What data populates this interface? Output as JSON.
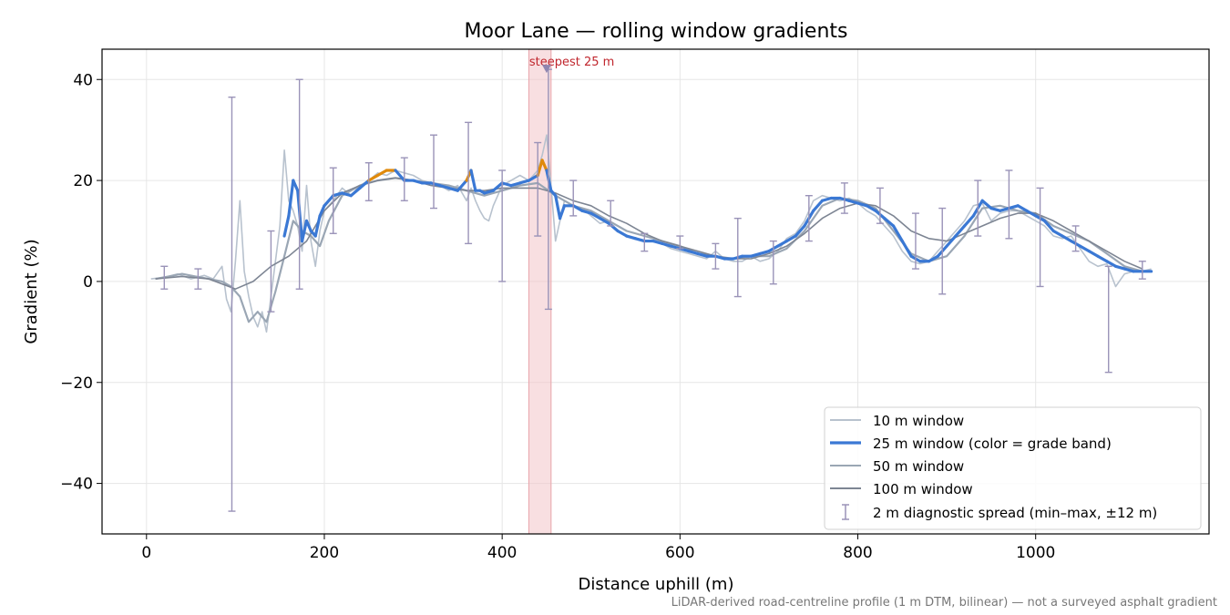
{
  "chart_data": {
    "type": "line",
    "title": "Moor Lane — rolling window gradients",
    "xlabel": "Distance uphill (m)",
    "ylabel": "Gradient (%)",
    "xlim": [
      -50,
      1195
    ],
    "ylim": [
      -50,
      46
    ],
    "x_ticks": [
      0,
      200,
      400,
      600,
      800,
      1000
    ],
    "y_ticks": [
      -40,
      -20,
      0,
      20,
      40
    ],
    "x_tick_labels": [
      "0",
      "200",
      "400",
      "600",
      "800",
      "1000"
    ],
    "y_tick_labels": [
      "−40",
      "−20",
      "0",
      "20",
      "40"
    ],
    "grid": true,
    "legend_position": "lower-right",
    "footnote": "LiDAR-derived road-centreline profile (1 m DTM, bilinear) — not a surveyed asphalt gradient",
    "annotation": {
      "text": "steepest 25 m",
      "x": 450,
      "y": 42,
      "span": [
        430,
        455
      ]
    },
    "colors": {
      "w10": "#b8c2ce",
      "w25_blue": "#3a78d4",
      "w25_orange": "#e08a0b",
      "w50": "#9aa6b4",
      "w100": "#7d8593",
      "errorbar": "#9a93b8",
      "span": "#f2c4c8",
      "marker": "#8e86b0"
    },
    "series": [
      {
        "name": "10 m window",
        "x": [
          5,
          20,
          35,
          50,
          65,
          75,
          85,
          90,
          95,
          100,
          105,
          110,
          115,
          120,
          125,
          130,
          135,
          140,
          145,
          150,
          155,
          160,
          165,
          170,
          175,
          180,
          185,
          190,
          195,
          200,
          210,
          220,
          230,
          240,
          250,
          260,
          270,
          280,
          290,
          300,
          310,
          320,
          330,
          340,
          350,
          360,
          365,
          370,
          375,
          380,
          385,
          390,
          400,
          410,
          420,
          430,
          440,
          445,
          450,
          455,
          460,
          470,
          480,
          490,
          500,
          510,
          520,
          530,
          540,
          550,
          560,
          570,
          580,
          590,
          600,
          610,
          620,
          630,
          640,
          650,
          660,
          670,
          680,
          690,
          700,
          710,
          720,
          730,
          740,
          750,
          760,
          770,
          780,
          790,
          800,
          810,
          820,
          830,
          840,
          850,
          860,
          870,
          880,
          890,
          900,
          910,
          920,
          930,
          940,
          950,
          960,
          970,
          980,
          990,
          1000,
          1010,
          1020,
          1030,
          1040,
          1050,
          1060,
          1070,
          1080,
          1090,
          1100,
          1110,
          1120,
          1130
        ],
        "y": [
          0.5,
          0.8,
          1.5,
          0.5,
          1.2,
          0.5,
          3.0,
          -3.5,
          -6.0,
          4.0,
          16.0,
          2.0,
          -3.0,
          -7.0,
          -9.0,
          -6.0,
          -10.0,
          -3.0,
          4.0,
          11.0,
          26.0,
          16.0,
          14.0,
          11.0,
          6.0,
          19.0,
          8.0,
          3.0,
          10.0,
          14.0,
          16.0,
          18.5,
          17.0,
          19.0,
          20.0,
          21.5,
          21.0,
          22.0,
          21.5,
          21.0,
          20.0,
          19.5,
          19.0,
          18.0,
          19.0,
          16.0,
          18.5,
          16.0,
          14.0,
          12.5,
          12.0,
          15.0,
          19.0,
          20.0,
          21.0,
          20.0,
          22.0,
          25.0,
          29.0,
          19.0,
          8.0,
          16.0,
          15.0,
          14.5,
          13.0,
          11.5,
          12.0,
          10.0,
          9.0,
          8.5,
          8.0,
          8.0,
          7.5,
          6.5,
          6.0,
          5.5,
          5.0,
          4.5,
          6.0,
          4.5,
          4.0,
          4.0,
          5.0,
          4.0,
          4.5,
          6.0,
          8.5,
          9.5,
          12.0,
          16.0,
          17.0,
          16.5,
          16.0,
          16.5,
          15.5,
          14.0,
          13.0,
          11.0,
          9.0,
          6.0,
          4.0,
          3.5,
          4.0,
          6.0,
          8.0,
          10.0,
          12.0,
          15.0,
          15.5,
          12.0,
          13.5,
          14.0,
          14.0,
          13.0,
          12.0,
          11.0,
          9.0,
          8.5,
          9.0,
          6.5,
          4.0,
          3.0,
          3.5,
          -1.0,
          1.5,
          2.0,
          2.0,
          2.5
        ]
      },
      {
        "name": "25 m window (color = grade band)",
        "x": [
          155,
          160,
          165,
          170,
          175,
          180,
          185,
          190,
          195,
          200,
          210,
          220,
          230,
          240,
          250,
          260,
          270,
          280,
          290,
          300,
          310,
          320,
          330,
          340,
          350,
          360,
          365,
          370,
          375,
          380,
          390,
          400,
          410,
          420,
          430,
          440,
          445,
          450,
          455,
          460,
          465,
          470,
          480,
          490,
          500,
          510,
          520,
          530,
          540,
          550,
          560,
          570,
          580,
          590,
          600,
          610,
          620,
          630,
          640,
          650,
          660,
          670,
          680,
          690,
          700,
          710,
          720,
          730,
          740,
          750,
          760,
          770,
          780,
          790,
          800,
          810,
          820,
          830,
          840,
          850,
          860,
          870,
          880,
          890,
          900,
          910,
          920,
          930,
          940,
          950,
          960,
          970,
          980,
          990,
          1000,
          1010,
          1020,
          1030,
          1040,
          1050,
          1060,
          1070,
          1080,
          1090,
          1100,
          1110,
          1120,
          1130
        ],
        "y": [
          9.0,
          13.0,
          20.0,
          18.0,
          8.0,
          12.0,
          10.0,
          9.0,
          13.0,
          15.0,
          17.0,
          17.5,
          17.0,
          18.5,
          20.0,
          21.0,
          22.0,
          22.0,
          20.0,
          20.0,
          19.5,
          19.5,
          19.0,
          18.5,
          18.0,
          20.0,
          22.0,
          18.0,
          18.0,
          17.5,
          18.0,
          19.5,
          19.0,
          19.5,
          20.0,
          21.0,
          24.0,
          22.0,
          18.0,
          17.0,
          12.5,
          15.0,
          15.0,
          14.0,
          13.5,
          12.5,
          11.5,
          10.0,
          9.0,
          8.5,
          8.0,
          8.0,
          7.5,
          7.0,
          6.5,
          6.0,
          5.5,
          5.0,
          5.0,
          4.5,
          4.5,
          5.0,
          5.0,
          5.5,
          6.0,
          7.0,
          8.0,
          9.0,
          11.0,
          14.0,
          16.0,
          16.5,
          16.5,
          16.0,
          15.5,
          15.0,
          14.0,
          12.5,
          11.0,
          8.0,
          5.0,
          4.0,
          4.0,
          5.0,
          7.0,
          9.0,
          11.0,
          13.0,
          16.0,
          14.5,
          14.0,
          14.5,
          15.0,
          14.0,
          13.0,
          12.0,
          10.0,
          9.0,
          8.0,
          7.0,
          6.0,
          5.0,
          4.0,
          3.0,
          2.5,
          2.0,
          2.0,
          2.0
        ],
        "orange_ranges": [
          [
            250,
            285
          ],
          [
            355,
            365
          ],
          [
            435,
            450
          ]
        ]
      },
      {
        "name": "50 m window",
        "x": [
          10,
          25,
          40,
          55,
          70,
          85,
          95,
          105,
          115,
          125,
          135,
          145,
          155,
          165,
          175,
          185,
          195,
          205,
          220,
          240,
          260,
          280,
          300,
          320,
          340,
          360,
          380,
          400,
          420,
          440,
          460,
          480,
          500,
          520,
          540,
          560,
          580,
          600,
          620,
          640,
          660,
          680,
          700,
          720,
          740,
          760,
          780,
          800,
          820,
          840,
          860,
          880,
          900,
          920,
          940,
          960,
          980,
          1000,
          1020,
          1040,
          1060,
          1080,
          1100,
          1120,
          1130
        ],
        "y": [
          0.5,
          1.0,
          1.5,
          1.0,
          0.5,
          0.0,
          -1.0,
          -3.0,
          -8.0,
          -6.0,
          -8.0,
          -2.0,
          5.0,
          12.0,
          10.0,
          9.0,
          7.0,
          12.0,
          17.0,
          19.0,
          20.0,
          20.5,
          20.0,
          19.5,
          19.0,
          18.0,
          17.0,
          18.0,
          19.0,
          19.5,
          17.0,
          15.0,
          14.0,
          12.0,
          10.0,
          9.0,
          8.0,
          7.0,
          5.5,
          5.0,
          4.5,
          5.0,
          5.0,
          6.5,
          10.0,
          15.0,
          16.5,
          16.0,
          14.5,
          10.0,
          5.5,
          4.0,
          5.0,
          9.0,
          14.5,
          15.0,
          14.0,
          13.5,
          11.0,
          9.5,
          8.0,
          5.5,
          3.0,
          2.0,
          2.0
        ]
      },
      {
        "name": "100 m window",
        "x": [
          10,
          40,
          70,
          100,
          120,
          140,
          160,
          180,
          200,
          220,
          240,
          260,
          280,
          300,
          320,
          340,
          360,
          380,
          400,
          420,
          440,
          460,
          480,
          500,
          520,
          540,
          560,
          580,
          600,
          620,
          640,
          660,
          680,
          700,
          720,
          740,
          760,
          780,
          800,
          820,
          840,
          860,
          880,
          900,
          920,
          940,
          960,
          980,
          1000,
          1020,
          1040,
          1060,
          1080,
          1100,
          1120
        ],
        "y": [
          0.5,
          1.0,
          0.5,
          -1.5,
          0.0,
          3.0,
          5.0,
          8.0,
          14.0,
          17.5,
          19.0,
          20.0,
          20.5,
          20.0,
          19.0,
          18.5,
          18.0,
          18.0,
          18.5,
          18.5,
          18.5,
          17.5,
          16.0,
          15.0,
          13.0,
          11.5,
          9.5,
          8.0,
          7.0,
          6.0,
          5.0,
          4.5,
          4.5,
          5.5,
          7.0,
          9.5,
          12.5,
          14.5,
          15.5,
          15.0,
          13.0,
          10.0,
          8.5,
          8.0,
          9.5,
          11.0,
          12.5,
          13.5,
          13.5,
          12.0,
          10.0,
          8.0,
          6.0,
          4.0,
          2.5
        ]
      },
      {
        "name": "2 m diagnostic spread (min–max, ±12 m)",
        "x": [
          20,
          58,
          96,
          140,
          172,
          210,
          250,
          290,
          323,
          362,
          400,
          440,
          452,
          480,
          522,
          560,
          600,
          640,
          665,
          705,
          745,
          785,
          825,
          865,
          895,
          935,
          970,
          1005,
          1045,
          1082,
          1120
        ],
        "lo": [
          -1.5,
          -1.5,
          -45.5,
          -6.0,
          -1.5,
          9.5,
          16.0,
          16.0,
          14.5,
          7.5,
          0.0,
          9.0,
          -5.5,
          13.0,
          11.0,
          6.0,
          6.5,
          2.5,
          -3.0,
          -0.5,
          8.0,
          13.5,
          11.5,
          2.5,
          -2.5,
          9.0,
          8.5,
          -1.0,
          6.0,
          -18.0,
          0.5
        ],
        "hi": [
          3.0,
          2.5,
          36.5,
          10.0,
          40.0,
          22.5,
          23.5,
          24.5,
          29.0,
          31.5,
          22.0,
          27.5,
          42.0,
          20.0,
          16.0,
          9.5,
          9.0,
          7.5,
          12.5,
          8.0,
          17.0,
          19.5,
          18.5,
          13.5,
          14.5,
          20.0,
          22.0,
          18.5,
          11.0,
          3.0,
          4.0
        ]
      }
    ]
  }
}
